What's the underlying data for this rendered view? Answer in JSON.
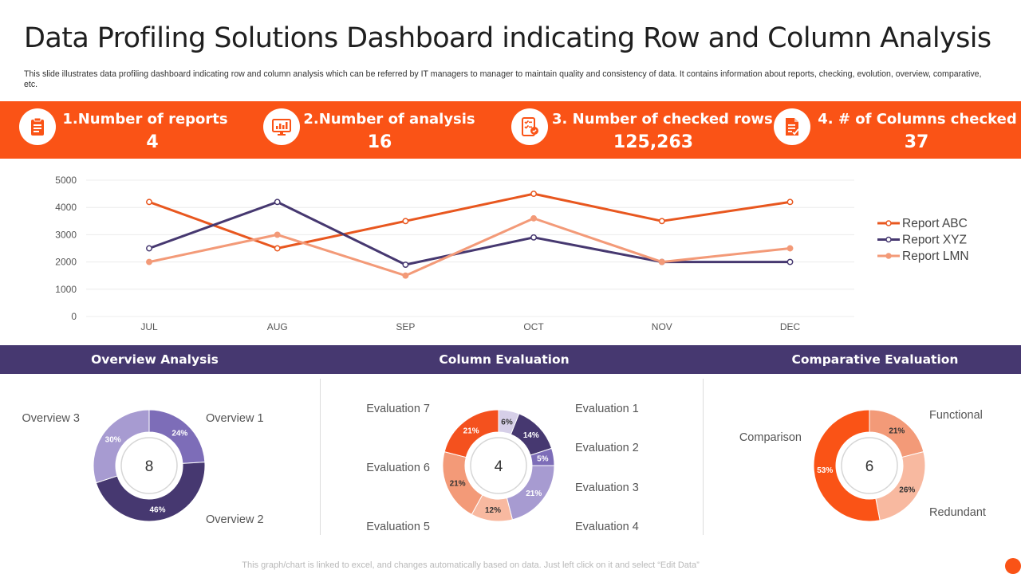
{
  "header": {
    "title": "Data Profiling Solutions Dashboard indicating Row and Column Analysis",
    "subtitle": "This slide illustrates data profiling dashboard indicating row and column analysis which can be referred by IT managers to manager to maintain  quality and consistency of data. It contains information about reports, checking, evolution, overview,  comparative, etc."
  },
  "kpis": [
    {
      "label": "1.Number of reports",
      "value": "4",
      "icon": "clipboard-icon"
    },
    {
      "label": "2.Number of analysis",
      "value": "16",
      "icon": "monitor-chart-icon"
    },
    {
      "label": "3. Number of checked rows",
      "value": "125,263",
      "icon": "checklist-tablet-icon"
    },
    {
      "label": "4. # of Columns checked",
      "value": "37",
      "icon": "document-check-icon"
    }
  ],
  "sections": {
    "overview": "Overview Analysis",
    "column": "Column Evaluation",
    "comparative": "Comparative Evaluation"
  },
  "colors": {
    "accent": "#fa5316",
    "purple": "#463870",
    "abc": "#e8571f",
    "xyz": "#463870",
    "lmn": "#f39a78"
  },
  "chart_data": [
    {
      "type": "line",
      "categories": [
        "JUL",
        "AUG",
        "SEP",
        "OCT",
        "NOV",
        "DEC"
      ],
      "ylim": [
        0,
        5000
      ],
      "yticks": [
        "0",
        "1000",
        "2000",
        "3000",
        "4000",
        "5000"
      ],
      "grid": true,
      "legend": "right",
      "series": [
        {
          "name": "Report ABC",
          "values": [
            4200,
            2500,
            3500,
            4500,
            3500,
            4200
          ],
          "color": "#e8571f"
        },
        {
          "name": "Report XYZ",
          "values": [
            2500,
            4200,
            1900,
            2900,
            2000,
            2000
          ],
          "color": "#463870"
        },
        {
          "name": "Report LMN",
          "values": [
            2000,
            3000,
            1500,
            3600,
            2000,
            2500
          ],
          "color": "#f39a78"
        }
      ]
    },
    {
      "type": "pie",
      "center_label": "8",
      "slices": [
        {
          "name": "Overview 1",
          "value": 24,
          "label": "24%",
          "color": "#7d6db8"
        },
        {
          "name": "Overview 2",
          "value": 46,
          "label": "46%",
          "color": "#463870"
        },
        {
          "name": "Overview 3",
          "value": 30,
          "label": "30%",
          "color": "#a79bd1"
        }
      ]
    },
    {
      "type": "pie",
      "center_label": "4",
      "slices": [
        {
          "name": "Evaluation 1",
          "value": 6,
          "label": "6%",
          "color": "#d6cfe8"
        },
        {
          "name": "Evaluation 2",
          "value": 14,
          "label": "14%",
          "color": "#463870"
        },
        {
          "name": "Evaluation 3",
          "value": 5,
          "label": "5%",
          "color": "#7d6db8"
        },
        {
          "name": "Evaluation 4",
          "value": 21,
          "label": "21%",
          "color": "#a79bd1"
        },
        {
          "name": "Evaluation 5",
          "value": 12,
          "label": "12%",
          "color": "#f8b9a0"
        },
        {
          "name": "Evaluation 6",
          "value": 21,
          "label": "21%",
          "color": "#f39a78"
        },
        {
          "name": "Evaluation 7",
          "value": 21,
          "label": "21%",
          "color": "#f4511e"
        }
      ]
    },
    {
      "type": "pie",
      "center_label": "6",
      "slices": [
        {
          "name": "Functional",
          "value": 21,
          "label": "21%",
          "color": "#f39a78"
        },
        {
          "name": "Redundant",
          "value": 26,
          "label": "26%",
          "color": "#f8b9a0"
        },
        {
          "name": "Comparison",
          "value": 53,
          "label": "53%",
          "color": "#fa5316"
        }
      ]
    }
  ],
  "footer": "This graph/chart is linked to excel, and changes automatically based on data. Just left click on it and select “Edit Data”"
}
